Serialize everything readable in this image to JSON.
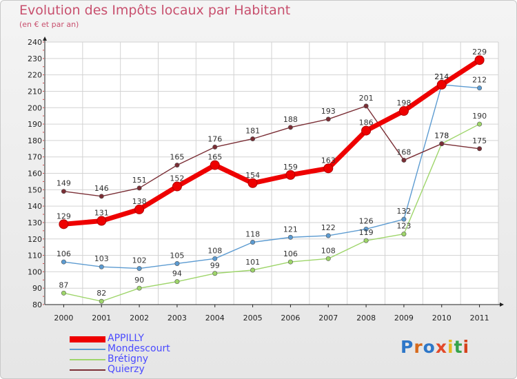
{
  "title": "Evolution des Impôts locaux par Habitant",
  "subtitle": "(en € et par an)",
  "logo": {
    "chars": [
      "P",
      "r",
      "o",
      "x",
      "i",
      "t",
      "i"
    ],
    "colors": [
      "#2e77c8",
      "#d66a1c",
      "#2e77c8",
      "#e34a2a",
      "#e6b821",
      "#35a34a",
      "#d6421c"
    ]
  },
  "chart_data": {
    "type": "line",
    "title": "Evolution des Impôts locaux par Habitant",
    "subtitle": "(en € et par an)",
    "categories": [
      "2000",
      "2001",
      "2002",
      "2003",
      "2004",
      "2005",
      "2006",
      "2007",
      "2008",
      "2009",
      "2010",
      "2011"
    ],
    "yticks": [
      "80",
      "90",
      "100",
      "110",
      "120",
      "130",
      "140",
      "150",
      "160",
      "170",
      "180",
      "190",
      "200",
      "210",
      "220",
      "230",
      "240"
    ],
    "ylim": [
      80,
      240
    ],
    "grid": true,
    "legend_position": "bottom-left",
    "series": [
      {
        "name": "APPILLY",
        "color": "#ee0000",
        "values": [
          129,
          131,
          138,
          152,
          165,
          154,
          159,
          163,
          186,
          198,
          214,
          229
        ],
        "labels": [
          "129",
          "131",
          "138",
          "152",
          "165",
          "154",
          "159",
          "163",
          "186",
          "198",
          "214",
          "229"
        ]
      },
      {
        "name": "Mondescourt",
        "color": "#5c9bd1",
        "values": [
          106,
          103,
          102,
          105,
          108,
          118,
          121,
          122,
          126,
          132,
          214,
          212
        ],
        "labels": [
          "106",
          "103",
          "102",
          "105",
          "108",
          "118",
          "121",
          "122",
          "126",
          "132",
          "214",
          "212"
        ]
      },
      {
        "name": "Brétigny",
        "color": "#9ed56a",
        "values": [
          87,
          82,
          90,
          94,
          99,
          101,
          106,
          108,
          119,
          123,
          178,
          190
        ],
        "labels": [
          "87",
          "82",
          "90",
          "94",
          "99",
          "101",
          "106",
          "108",
          "119",
          "123",
          "178",
          "190"
        ]
      },
      {
        "name": "Quierzy",
        "color": "#7a2e35",
        "values": [
          149,
          146,
          151,
          165,
          176,
          181,
          188,
          193,
          201,
          168,
          178,
          175
        ],
        "labels": [
          "149",
          "146",
          "151",
          "165",
          "176",
          "181",
          "188",
          "193",
          "201",
          "168",
          "178",
          "175"
        ]
      }
    ]
  }
}
